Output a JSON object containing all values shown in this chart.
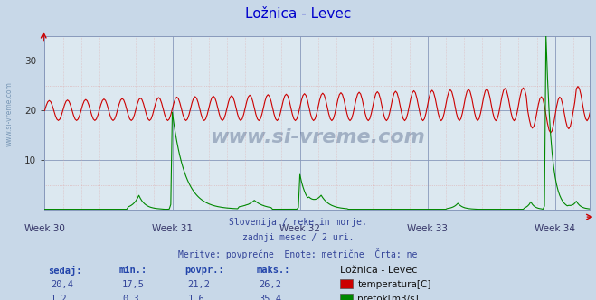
{
  "title": "Ložnica - Levec",
  "title_color": "#0000cc",
  "bg_color": "#c8d8e8",
  "plot_bg_color": "#dce8f0",
  "ylabel_left": "",
  "xlabel": "",
  "week_labels": [
    "Week 30",
    "Week 31",
    "Week 32",
    "Week 33",
    "Week 34"
  ],
  "ylim": [
    0,
    35
  ],
  "yticks": [
    10,
    20,
    30
  ],
  "subtitle_lines": [
    "Slovenija / reke in morje.",
    "zadnji mesec / 2 uri.",
    "Meritve: povprečne  Enote: metrične  Črta: ne"
  ],
  "table_headers": [
    "sedaj:",
    "min.:",
    "povpr.:",
    "maks.:"
  ],
  "table_row1": [
    "20,4",
    "17,5",
    "21,2",
    "26,2"
  ],
  "table_row2": [
    "1,2",
    "0,3",
    "1,6",
    "35,4"
  ],
  "legend_label1": "temperatura[C]",
  "legend_label2": "pretok[m3/s]",
  "legend_title": "Ložnica - Levec",
  "color_temp": "#cc0000",
  "color_flow": "#008800",
  "watermark": "www.si-vreme.com",
  "watermark_color": "#1a3060",
  "num_points": 360,
  "week_positions": [
    0,
    84,
    168,
    252,
    336
  ],
  "temp_base": 20.0,
  "flow_base": 0.15
}
